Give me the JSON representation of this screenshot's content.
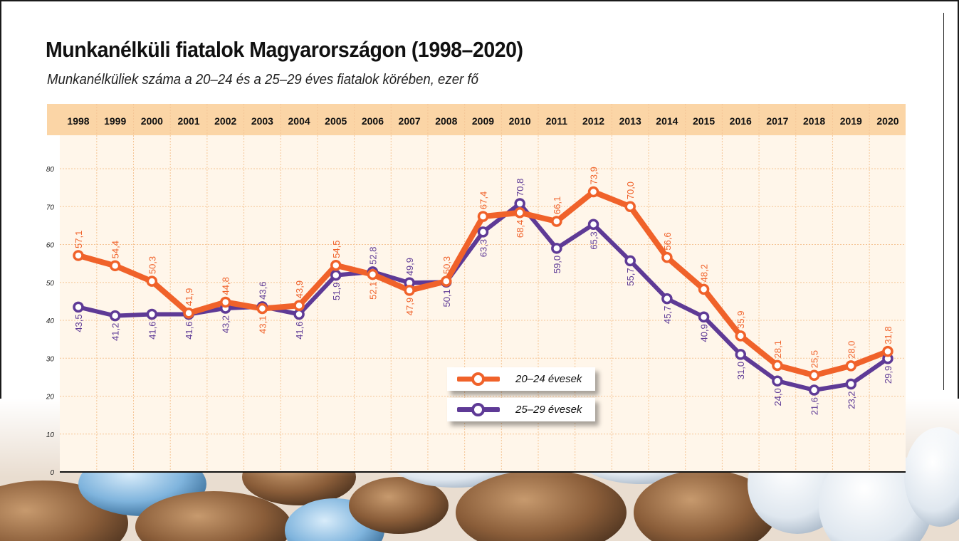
{
  "title": "Munkanélküli fiatalok Magyarországon (1998–2020)",
  "subtitle": "Munkanélküliek száma a 20–24 és a 25–29 éves fiatalok körében, ezer fő",
  "colors": {
    "series_20_24": "#f0622a",
    "series_25_29": "#5e3a96",
    "header_band": "#fbd5a6",
    "grid": "#f5c596",
    "plot_bg": "#fff6ea"
  },
  "chart_data": {
    "type": "line",
    "title": "Munkanélküli fiatalok Magyarországon (1998–2020)",
    "subtitle": "Munkanélküliek száma a 20–24 és a 25–29 éves fiatalok körében, ezer fő",
    "x": [
      "1998",
      "1999",
      "2000",
      "2001",
      "2002",
      "2003",
      "2004",
      "2005",
      "2006",
      "2007",
      "2008",
      "2009",
      "2010",
      "2011",
      "2012",
      "2013",
      "2014",
      "2015",
      "2016",
      "2017",
      "2018",
      "2019",
      "2020"
    ],
    "ylim": [
      0,
      80
    ],
    "yticks": [
      "0",
      "10",
      "20",
      "30",
      "40",
      "50",
      "60",
      "70",
      "80"
    ],
    "legend_position": "center-bottom",
    "grid": true,
    "series": [
      {
        "name": "20–24 évesek",
        "values": [
          57.1,
          54.4,
          50.3,
          41.9,
          44.8,
          43.1,
          43.9,
          54.5,
          52.1,
          47.9,
          50.3,
          67.4,
          68.4,
          66.1,
          73.9,
          70.0,
          56.6,
          48.2,
          35.9,
          28.1,
          25.5,
          28.0,
          31.8
        ],
        "labels": [
          "57,1",
          "54,4",
          "50,3",
          "41,9",
          "44,8",
          "43,1",
          "43,9",
          "54,5",
          "52,1",
          "47,9",
          "50,3",
          "67,4",
          "68,4",
          "66,1",
          "73,9",
          "70,0",
          "56,6",
          "48,2",
          "35,9",
          "28,1",
          "25,5",
          "28,0",
          "31,8"
        ]
      },
      {
        "name": "25–29 évesek",
        "values": [
          43.5,
          41.2,
          41.6,
          41.6,
          43.2,
          43.6,
          41.6,
          51.9,
          52.8,
          49.9,
          50.1,
          63.3,
          70.8,
          59.0,
          65.3,
          55.7,
          45.7,
          40.9,
          31.0,
          24.0,
          21.6,
          23.2,
          29.9
        ],
        "labels": [
          "43,5",
          "41,2",
          "41,6",
          "41,6",
          "43,2",
          "43,6",
          "41,6",
          "51,9",
          "52,8",
          "49,9",
          "50,1",
          "63,3",
          "70,8",
          "59,0",
          "65,3",
          "55,7",
          "45,7",
          "40,9",
          "31,0",
          "24,0",
          "21,6",
          "23,2",
          "29,9"
        ]
      }
    ]
  }
}
